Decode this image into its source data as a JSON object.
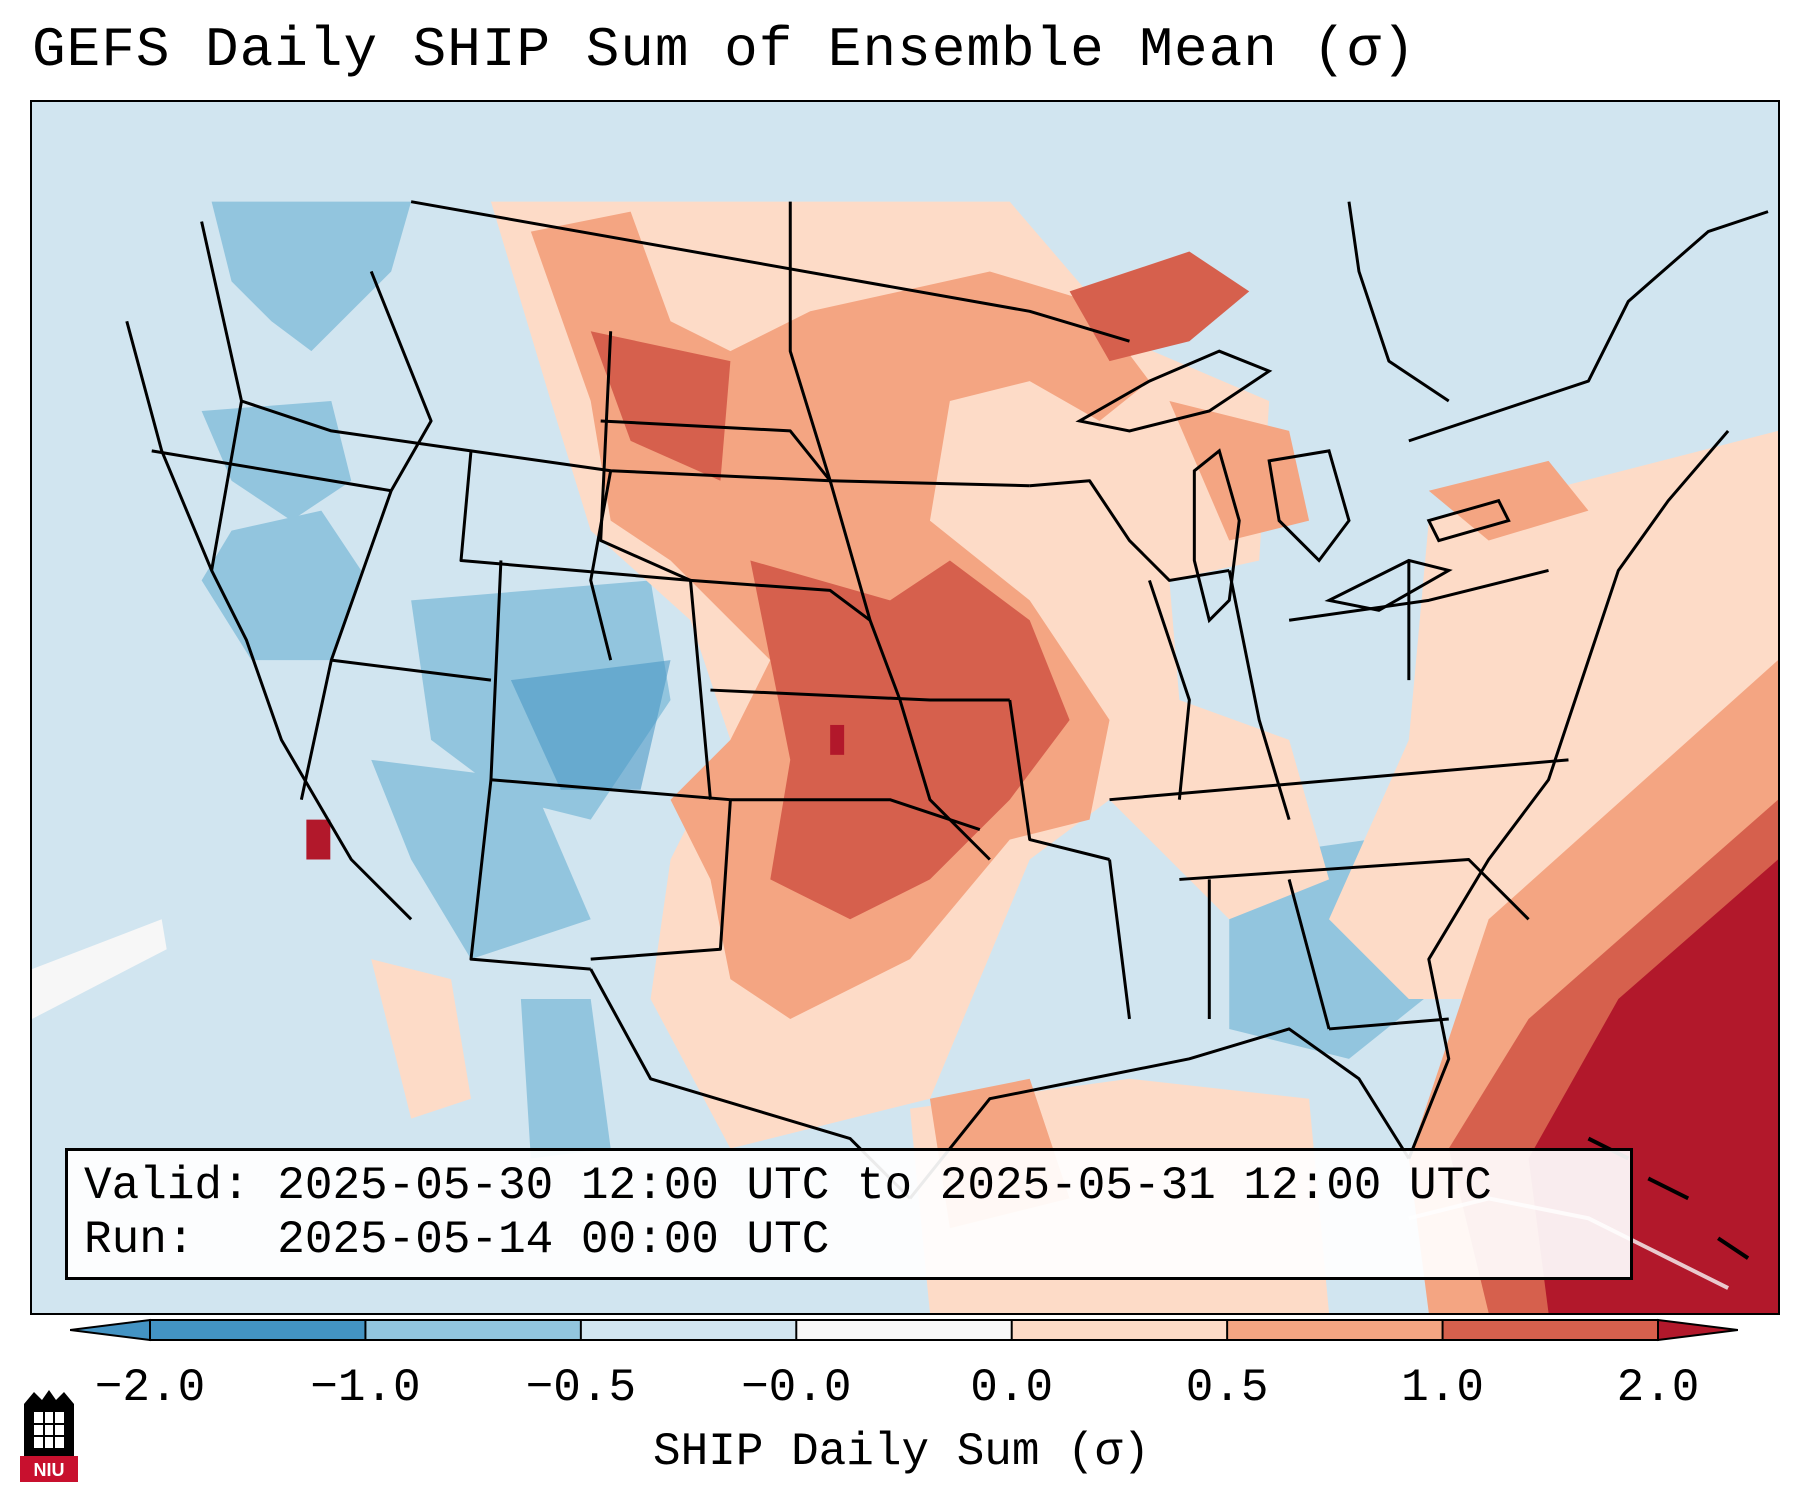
{
  "title": "GEFS Daily SHIP Sum of Ensemble Mean (σ)",
  "info": {
    "valid_line": "Valid: 2025-05-30 12:00 UTC to 2025-05-31 12:00 UTC",
    "run_line": "Run:   2025-05-14 00:00 UTC"
  },
  "colorbar": {
    "label": "SHIP Daily Sum (σ)",
    "ticks": [
      "−2.0",
      "−1.0",
      "−0.5",
      "−0.0",
      "0.0",
      "0.5",
      "1.0",
      "2.0"
    ],
    "colors": [
      "#4393c3",
      "#92c5de",
      "#d1e5f0",
      "#f7f7f7",
      "#fddbc7",
      "#f4a582",
      "#d6604d",
      "#b2182b"
    ]
  },
  "map": {
    "region": "Continental United States",
    "colors": {
      "ocean_background": "#d1e5f0",
      "border": "#000000"
    }
  },
  "logo": {
    "text": "NIU",
    "color": "#c8102e"
  }
}
